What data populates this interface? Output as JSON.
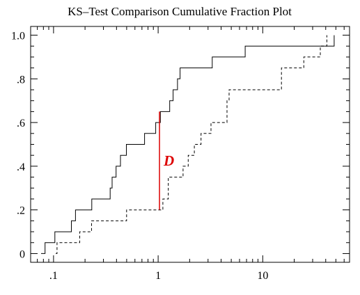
{
  "chart_data": {
    "type": "line",
    "subtype": "step-cdf",
    "title": "KS–Test Comparison Cumulative Fraction Plot",
    "xlabel": "",
    "ylabel": "",
    "x_scale": "log",
    "xlim": [
      0.0604,
      67.6
    ],
    "ylim": [
      -0.04,
      1.04
    ],
    "x_ticks": [
      {
        "value": 0.1,
        "label": ".1"
      },
      {
        "value": 1,
        "label": "1"
      },
      {
        "value": 10,
        "label": "10"
      }
    ],
    "y_ticks": [
      {
        "value": 0,
        "label": "0"
      },
      {
        "value": 0.2,
        "label": ".2"
      },
      {
        "value": 0.4,
        "label": ".4"
      },
      {
        "value": 0.6,
        "label": ".6"
      },
      {
        "value": 0.8,
        "label": ".8"
      },
      {
        "value": 1.0,
        "label": "1.0"
      }
    ],
    "grid": false,
    "series": [
      {
        "style": "solid",
        "color": "#000000",
        "x": [
          0.076,
          0.083,
          0.103,
          0.148,
          0.162,
          0.232,
          0.266,
          0.348,
          0.363,
          0.396,
          0.436,
          0.497,
          0.581,
          0.741,
          0.948,
          1.05,
          1.29,
          1.39,
          1.53,
          1.62,
          1.89,
          2.46,
          3.29,
          6.79,
          33.8,
          48.2
        ],
        "y": [
          0,
          0.05,
          0.1,
          0.15,
          0.2,
          0.25,
          0.25,
          0.3,
          0.35,
          0.4,
          0.45,
          0.5,
          0.5,
          0.55,
          0.6,
          0.65,
          0.7,
          0.75,
          0.8,
          0.85,
          0.85,
          0.85,
          0.9,
          0.95,
          0.95,
          1.0
        ]
      },
      {
        "style": "dashed",
        "color": "#000000",
        "x": [
          0.105,
          0.108,
          0.178,
          0.183,
          0.231,
          0.499,
          0.586,
          0.778,
          1.05,
          1.11,
          1.25,
          1.46,
          1.73,
          1.94,
          2.22,
          2.57,
          3.2,
          4.55,
          4.77,
          15.1,
          24.7,
          35.5,
          41.0
        ],
        "y": [
          0,
          0.05,
          0.1,
          0.1,
          0.15,
          0.2,
          0.2,
          0.2,
          0.2,
          0.25,
          0.35,
          0.35,
          0.4,
          0.45,
          0.5,
          0.55,
          0.6,
          0.7,
          0.75,
          0.85,
          0.9,
          0.95,
          1.0
        ]
      }
    ],
    "annotations": {
      "d_statistic": {
        "label": "D",
        "x": 1.03,
        "y_from": 0.2,
        "y_to": 0.65,
        "color": "#dd0000"
      }
    }
  }
}
